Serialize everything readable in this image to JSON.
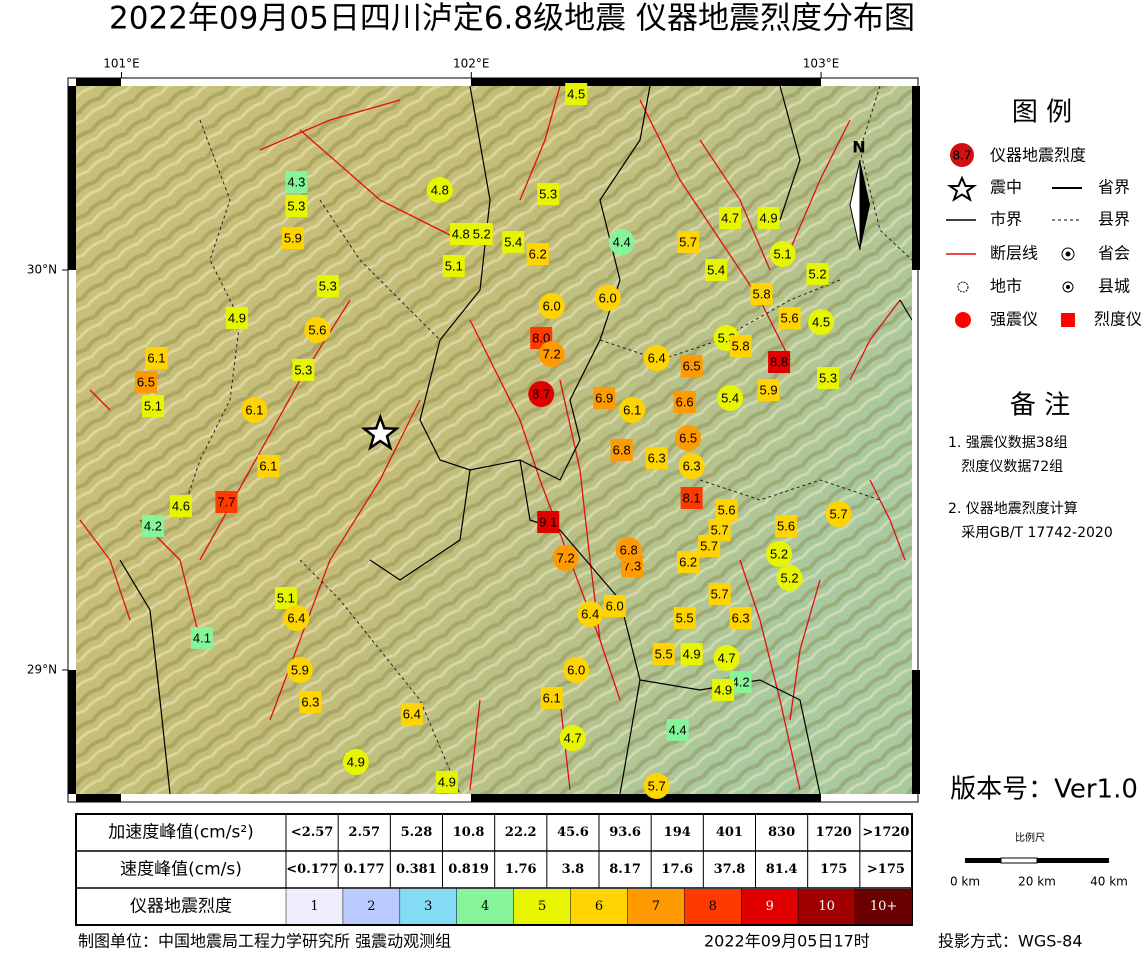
{
  "header": {
    "title": "2022年09月05日四川泸定6.8级地震  仪器地震烈度分布图"
  },
  "map": {
    "lon_range": [
      100.87,
      103.26
    ],
    "lat_range": [
      28.69,
      30.46
    ],
    "lon_ticks": [
      {
        "value": 101,
        "label": "101°E"
      },
      {
        "value": 102,
        "label": "102°E"
      },
      {
        "value": 103,
        "label": "103°E"
      }
    ],
    "lat_ticks": [
      {
        "value": 30,
        "label": "30°N"
      },
      {
        "value": 29,
        "label": "29°N"
      }
    ],
    "north": "N",
    "epicenter": {
      "lon": 101.74,
      "lat": 29.59
    },
    "stations": [
      {
        "lon": 102.3,
        "lat": 30.44,
        "intensity": 4.5,
        "kind": "square"
      },
      {
        "lon": 101.5,
        "lat": 30.22,
        "intensity": 4.3,
        "kind": "square"
      },
      {
        "lon": 101.5,
        "lat": 30.16,
        "intensity": 5.3,
        "kind": "square"
      },
      {
        "lon": 101.49,
        "lat": 30.08,
        "intensity": 5.9,
        "kind": "square"
      },
      {
        "lon": 101.91,
        "lat": 30.2,
        "intensity": 4.8,
        "kind": "circle"
      },
      {
        "lon": 102.22,
        "lat": 30.19,
        "intensity": 5.3,
        "kind": "square"
      },
      {
        "lon": 101.97,
        "lat": 30.09,
        "intensity": 4.8,
        "kind": "square"
      },
      {
        "lon": 102.03,
        "lat": 30.09,
        "intensity": 5.2,
        "kind": "square"
      },
      {
        "lon": 102.12,
        "lat": 30.07,
        "intensity": 5.4,
        "kind": "square"
      },
      {
        "lon": 102.19,
        "lat": 30.04,
        "intensity": 6.2,
        "kind": "square"
      },
      {
        "lon": 101.95,
        "lat": 30.01,
        "intensity": 5.1,
        "kind": "square"
      },
      {
        "lon": 102.43,
        "lat": 30.07,
        "intensity": 4.4,
        "kind": "circle"
      },
      {
        "lon": 102.62,
        "lat": 30.07,
        "intensity": 5.7,
        "kind": "square"
      },
      {
        "lon": 102.74,
        "lat": 30.13,
        "intensity": 4.7,
        "kind": "square"
      },
      {
        "lon": 102.85,
        "lat": 30.13,
        "intensity": 4.9,
        "kind": "square"
      },
      {
        "lon": 102.89,
        "lat": 30.04,
        "intensity": 5.1,
        "kind": "circle"
      },
      {
        "lon": 102.99,
        "lat": 29.99,
        "intensity": 5.2,
        "kind": "square"
      },
      {
        "lon": 102.7,
        "lat": 30.0,
        "intensity": 5.4,
        "kind": "square"
      },
      {
        "lon": 101.59,
        "lat": 29.96,
        "intensity": 5.3,
        "kind": "square"
      },
      {
        "lon": 102.23,
        "lat": 29.91,
        "intensity": 6,
        "label": "6.0",
        "kind": "circle"
      },
      {
        "lon": 102.39,
        "lat": 29.93,
        "intensity": 6,
        "label": "6.0",
        "kind": "circle"
      },
      {
        "lon": 102.83,
        "lat": 29.94,
        "intensity": 5.8,
        "kind": "square"
      },
      {
        "lon": 102.91,
        "lat": 29.88,
        "intensity": 5.6,
        "kind": "square"
      },
      {
        "lon": 103.0,
        "lat": 29.87,
        "intensity": 4.5,
        "kind": "circle"
      },
      {
        "lon": 101.33,
        "lat": 29.88,
        "intensity": 4.9,
        "kind": "square"
      },
      {
        "lon": 101.56,
        "lat": 29.85,
        "intensity": 5.6,
        "kind": "circle"
      },
      {
        "lon": 102.2,
        "lat": 29.83,
        "intensity": 8,
        "label": "8.0",
        "kind": "square"
      },
      {
        "lon": 102.23,
        "lat": 29.79,
        "intensity": 7.2,
        "kind": "circle"
      },
      {
        "lon": 102.53,
        "lat": 29.78,
        "intensity": 6.4,
        "kind": "circle"
      },
      {
        "lon": 102.63,
        "lat": 29.76,
        "intensity": 6.5,
        "kind": "square"
      },
      {
        "lon": 102.73,
        "lat": 29.83,
        "intensity": 5.3,
        "kind": "circle"
      },
      {
        "lon": 102.77,
        "lat": 29.81,
        "intensity": 5.8,
        "kind": "square"
      },
      {
        "lon": 102.88,
        "lat": 29.77,
        "intensity": 8.8,
        "kind": "square"
      },
      {
        "lon": 101.1,
        "lat": 29.78,
        "intensity": 6.1,
        "kind": "square"
      },
      {
        "lon": 101.07,
        "lat": 29.72,
        "intensity": 6.5,
        "kind": "square"
      },
      {
        "lon": 101.52,
        "lat": 29.75,
        "intensity": 5.3,
        "kind": "square"
      },
      {
        "lon": 101.09,
        "lat": 29.66,
        "intensity": 5.1,
        "kind": "square"
      },
      {
        "lon": 102.2,
        "lat": 29.69,
        "intensity": 8.7,
        "kind": "circle"
      },
      {
        "lon": 102.38,
        "lat": 29.68,
        "intensity": 6.9,
        "kind": "square"
      },
      {
        "lon": 102.46,
        "lat": 29.65,
        "intensity": 6.1,
        "kind": "circle"
      },
      {
        "lon": 102.61,
        "lat": 29.67,
        "intensity": 6.6,
        "kind": "square"
      },
      {
        "lon": 102.74,
        "lat": 29.68,
        "intensity": 5.4,
        "kind": "circle"
      },
      {
        "lon": 102.85,
        "lat": 29.7,
        "intensity": 5.9,
        "kind": "square"
      },
      {
        "lon": 103.02,
        "lat": 29.73,
        "intensity": 5.3,
        "kind": "square"
      },
      {
        "lon": 101.38,
        "lat": 29.65,
        "intensity": 6.1,
        "kind": "circle"
      },
      {
        "lon": 102.62,
        "lat": 29.58,
        "intensity": 6.5,
        "kind": "circle"
      },
      {
        "lon": 102.43,
        "lat": 29.55,
        "intensity": 6.8,
        "kind": "square"
      },
      {
        "lon": 102.53,
        "lat": 29.53,
        "intensity": 6.3,
        "kind": "square"
      },
      {
        "lon": 102.63,
        "lat": 29.51,
        "intensity": 6.3,
        "kind": "circle"
      },
      {
        "lon": 101.42,
        "lat": 29.51,
        "intensity": 6.1,
        "kind": "square"
      },
      {
        "lon": 102.63,
        "lat": 29.43,
        "intensity": 8.1,
        "kind": "square"
      },
      {
        "lon": 101.3,
        "lat": 29.42,
        "intensity": 7.7,
        "kind": "square"
      },
      {
        "lon": 101.17,
        "lat": 29.41,
        "intensity": 4.6,
        "kind": "square"
      },
      {
        "lon": 101.09,
        "lat": 29.36,
        "intensity": 4.2,
        "kind": "square"
      },
      {
        "lon": 102.22,
        "lat": 29.37,
        "intensity": 9.1,
        "kind": "square"
      },
      {
        "lon": 102.73,
        "lat": 29.4,
        "intensity": 5.6,
        "kind": "square"
      },
      {
        "lon": 102.9,
        "lat": 29.36,
        "intensity": 5.6,
        "kind": "square"
      },
      {
        "lon": 102.71,
        "lat": 29.35,
        "intensity": 5.7,
        "kind": "square"
      },
      {
        "lon": 103.05,
        "lat": 29.39,
        "intensity": 5.7,
        "kind": "circle"
      },
      {
        "lon": 102.68,
        "lat": 29.31,
        "intensity": 5.7,
        "kind": "square"
      },
      {
        "lon": 102.27,
        "lat": 29.28,
        "intensity": 7.2,
        "kind": "circle"
      },
      {
        "lon": 102.46,
        "lat": 29.26,
        "intensity": 7.3,
        "kind": "square"
      },
      {
        "lon": 102.45,
        "lat": 29.3,
        "intensity": 6.8,
        "kind": "circle"
      },
      {
        "lon": 102.62,
        "lat": 29.27,
        "intensity": 6.2,
        "kind": "square"
      },
      {
        "lon": 102.88,
        "lat": 29.29,
        "intensity": 5.2,
        "kind": "circle"
      },
      {
        "lon": 102.91,
        "lat": 29.23,
        "intensity": 5.2,
        "kind": "circle"
      },
      {
        "lon": 101.47,
        "lat": 29.18,
        "intensity": 5.1,
        "kind": "square"
      },
      {
        "lon": 101.5,
        "lat": 29.13,
        "intensity": 6.4,
        "kind": "circle"
      },
      {
        "lon": 102.71,
        "lat": 29.19,
        "intensity": 5.7,
        "kind": "square"
      },
      {
        "lon": 102.41,
        "lat": 29.16,
        "intensity": 6,
        "label": "6.0",
        "kind": "square"
      },
      {
        "lon": 102.34,
        "lat": 29.14,
        "intensity": 6.4,
        "kind": "circle"
      },
      {
        "lon": 102.61,
        "lat": 29.13,
        "intensity": 5.5,
        "kind": "square"
      },
      {
        "lon": 102.77,
        "lat": 29.13,
        "intensity": 6.3,
        "kind": "square"
      },
      {
        "lon": 101.23,
        "lat": 29.08,
        "intensity": 4.1,
        "kind": "square"
      },
      {
        "lon": 102.55,
        "lat": 29.04,
        "intensity": 5.5,
        "kind": "square"
      },
      {
        "lon": 102.63,
        "lat": 29.04,
        "intensity": 4.9,
        "kind": "square"
      },
      {
        "lon": 102.73,
        "lat": 29.03,
        "intensity": 4.7,
        "kind": "circle"
      },
      {
        "lon": 101.51,
        "lat": 29.0,
        "intensity": 5.9,
        "kind": "circle"
      },
      {
        "lon": 102.3,
        "lat": 29.0,
        "intensity": 6,
        "label": "6.0",
        "kind": "circle"
      },
      {
        "lon": 102.77,
        "lat": 28.97,
        "intensity": 4.2,
        "kind": "square"
      },
      {
        "lon": 102.72,
        "lat": 28.95,
        "intensity": 4.9,
        "kind": "square"
      },
      {
        "lon": 102.23,
        "lat": 28.93,
        "intensity": 6.1,
        "kind": "square"
      },
      {
        "lon": 101.54,
        "lat": 28.92,
        "intensity": 6.3,
        "kind": "square"
      },
      {
        "lon": 101.83,
        "lat": 28.89,
        "intensity": 6.4,
        "kind": "square"
      },
      {
        "lon": 102.29,
        "lat": 28.83,
        "intensity": 4.7,
        "kind": "circle"
      },
      {
        "lon": 102.59,
        "lat": 28.85,
        "intensity": 4.4,
        "kind": "square"
      },
      {
        "lon": 101.67,
        "lat": 28.77,
        "intensity": 4.9,
        "kind": "circle"
      },
      {
        "lon": 101.93,
        "lat": 28.72,
        "intensity": 4.9,
        "kind": "square"
      },
      {
        "lon": 102.53,
        "lat": 28.71,
        "intensity": 5.7,
        "kind": "circle"
      }
    ]
  },
  "legend": {
    "title": "图 例",
    "intensity_sample": "8.7",
    "intensity": "仪器地震烈度",
    "epicenter": "震中",
    "province_border": "省界",
    "city_border": "市界",
    "county_border": "县界",
    "fault": "断层线",
    "capital": "省会",
    "city": "地市",
    "county": "县城",
    "strong_motion": "强震仪",
    "intensity_meter": "烈度仪"
  },
  "notes": {
    "title": "备 注",
    "lines": [
      "1. 强震仪数据38组",
      "   烈度仪数据72组",
      "2. 仪器地震烈度计算",
      "   采用GB/T 17742-2020"
    ]
  },
  "version": "版本号：Ver1.0",
  "scale": {
    "title": "比例尺",
    "labels": [
      "0 km",
      "20 km",
      "40 km"
    ]
  },
  "table": {
    "rows": [
      [
        "加速度峰值(cm/s²)",
        "<2.57",
        "2.57",
        "5.28",
        "10.8",
        "22.2",
        "45.6",
        "93.6",
        "194",
        "401",
        "830",
        "1720",
        ">1720"
      ],
      [
        "速度峰值(cm/s)",
        "<0.177",
        "0.177",
        "0.381",
        "0.819",
        "1.76",
        "3.8",
        "8.17",
        "17.6",
        "37.8",
        "81.4",
        "175",
        ">175"
      ],
      [
        "仪器地震烈度",
        "1",
        "2",
        "3",
        "4",
        "5",
        "6",
        "7",
        "8",
        "9",
        "10",
        "10+"
      ]
    ],
    "colors": [
      "#eeeefe",
      "#bccbff",
      "#84dcf4",
      "#86f59a",
      "#e8f500",
      "#ffd400",
      "#ff9a00",
      "#ff3a00",
      "#e00000",
      "#a00000",
      "#6a0000"
    ]
  },
  "footer": {
    "maker": "制图单位：中国地震局工程力学研究所 强震动观测组",
    "time": "2022年09月05日17时",
    "projection": "投影方式：WGS-84"
  }
}
